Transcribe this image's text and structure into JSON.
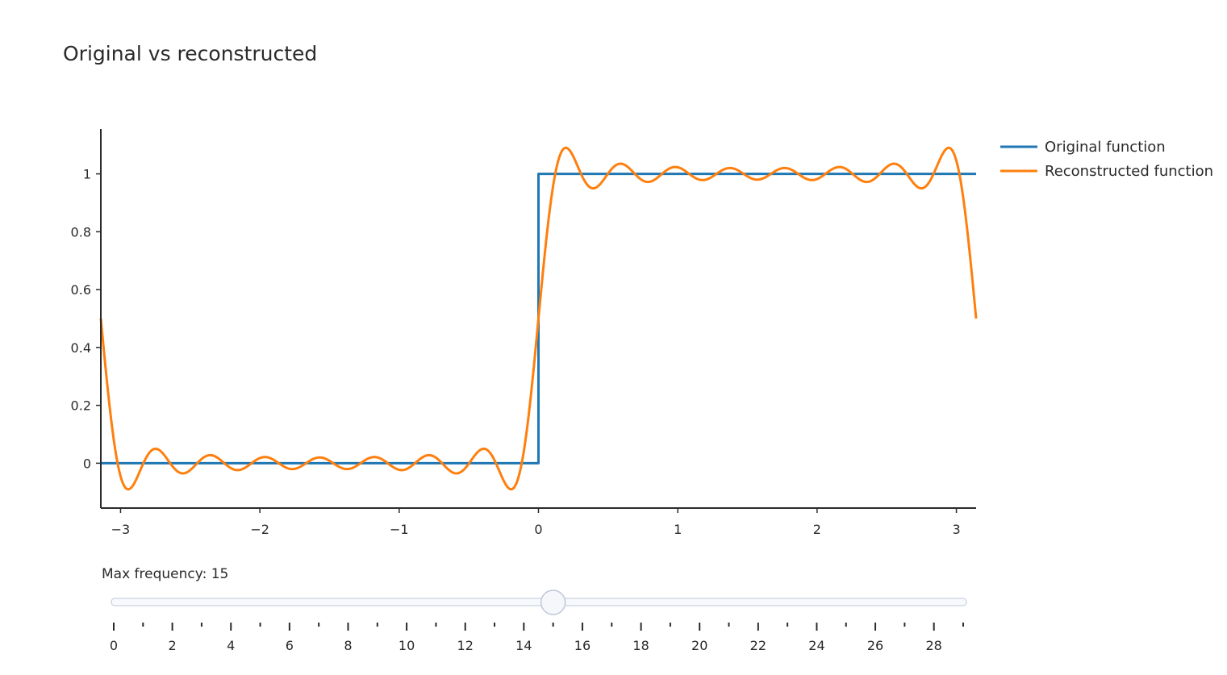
{
  "chart_data": {
    "type": "line",
    "title": "Original vs reconstructed",
    "xlabel": "",
    "ylabel": "",
    "xlim": [
      -3.14159,
      3.14159
    ],
    "ylim": [
      -0.155,
      1.155
    ],
    "x_ticks": [
      -3,
      -2,
      -1,
      0,
      1,
      2,
      3
    ],
    "x_tick_labels": [
      "−3",
      "−2",
      "−1",
      "0",
      "1",
      "2",
      "3"
    ],
    "y_ticks": [
      0,
      0.2,
      0.4,
      0.6,
      0.8,
      1
    ],
    "y_tick_labels": [
      "0",
      "0.2",
      "0.4",
      "0.6",
      "0.8",
      "1"
    ],
    "grid": false,
    "legend_position": "top-right",
    "series": [
      {
        "name": "Original function",
        "color": "#1f77b4",
        "x": [
          -3.14159,
          0,
          0,
          3.14159
        ],
        "y": [
          0,
          0,
          1,
          1
        ]
      },
      {
        "name": "Reconstructed function",
        "color": "#ff7f0e",
        "kind": "fourier_partial_sum_of_step",
        "max_frequency": 15
      }
    ]
  },
  "slider": {
    "label": "Max frequency: 15",
    "value": 15,
    "min": 0,
    "max": 29,
    "tick_labels": [
      "0",
      "2",
      "4",
      "6",
      "8",
      "10",
      "12",
      "14",
      "16",
      "18",
      "20",
      "22",
      "24",
      "26",
      "28"
    ]
  }
}
